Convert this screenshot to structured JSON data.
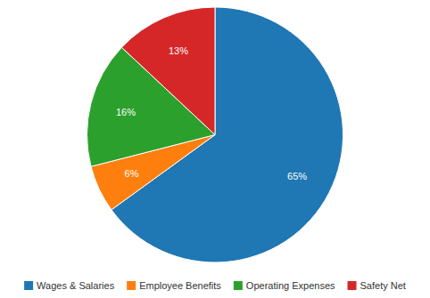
{
  "chart_data": {
    "type": "pie",
    "categories": [
      "Wages & Salaries",
      "Employee Benefits",
      "Operating Expenses",
      "Safety Net"
    ],
    "values": [
      65,
      6,
      16,
      13
    ],
    "value_labels": [
      "65%",
      "6%",
      "16%",
      "13%"
    ],
    "data_labels": true,
    "legend": "bottom"
  }
}
